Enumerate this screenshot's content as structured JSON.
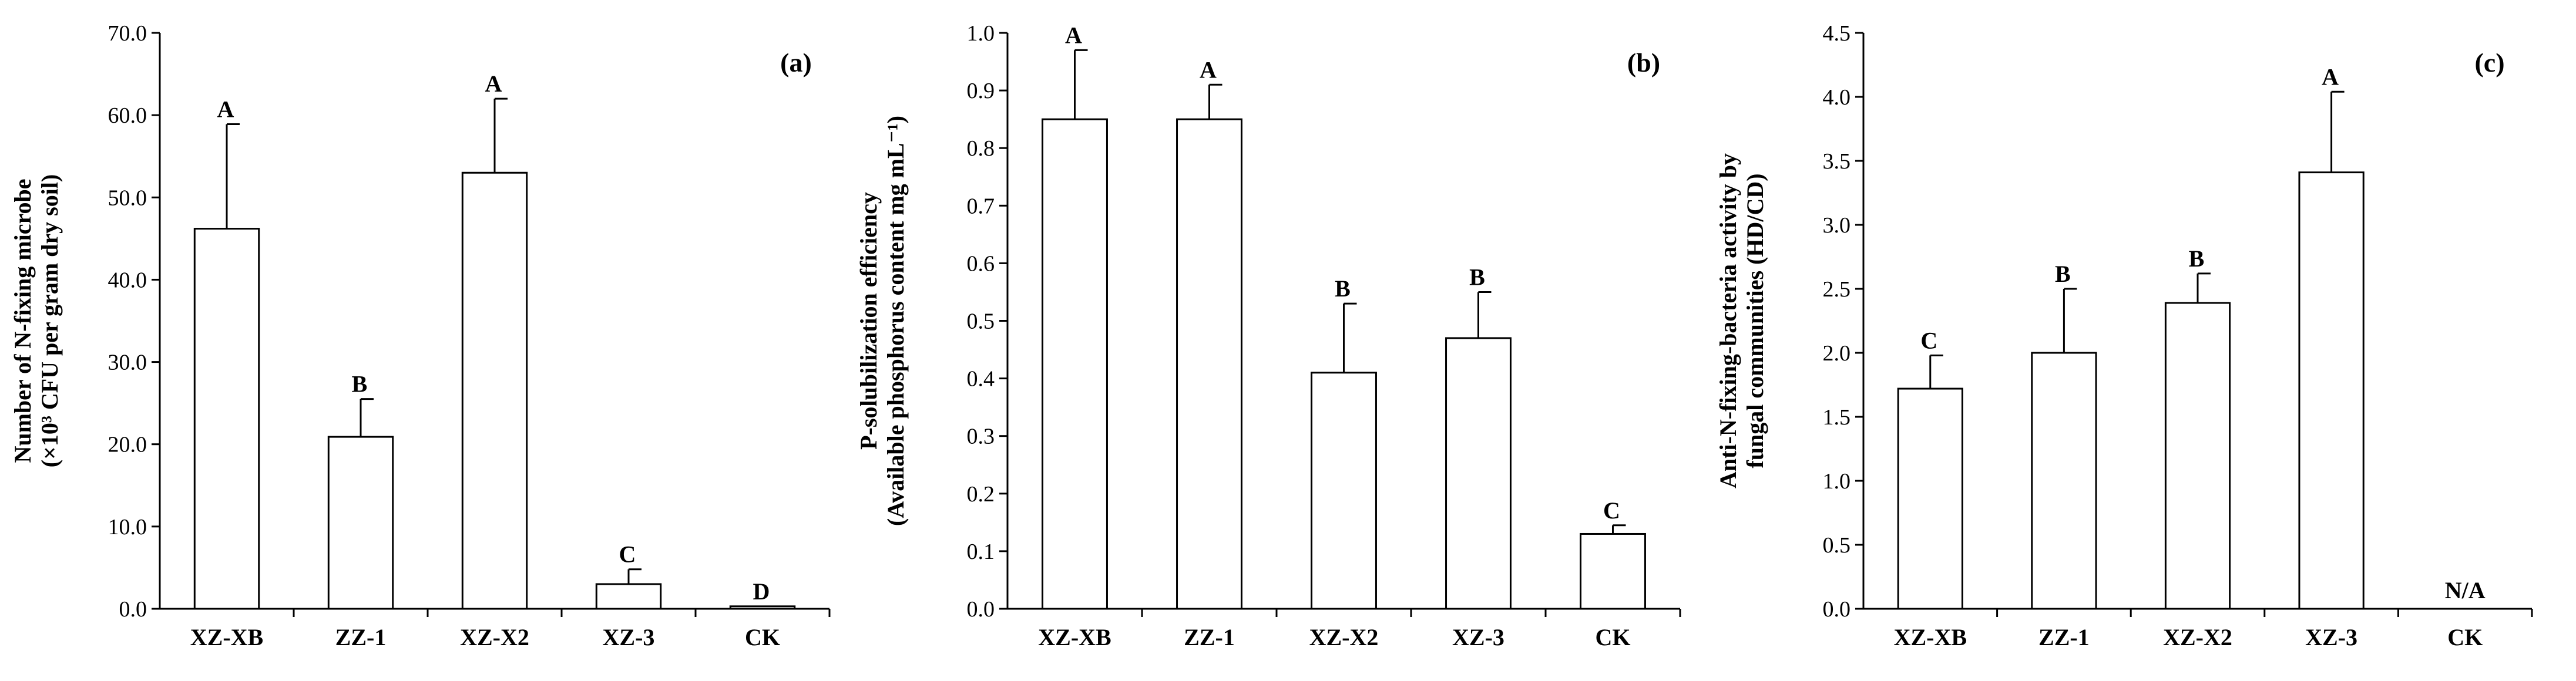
{
  "chart_data": [
    {
      "type": "bar",
      "panel_label": "(a)",
      "categories": [
        "XZ-XB",
        "ZZ-1",
        "XZ-X2",
        "XZ-3",
        "CK"
      ],
      "values": [
        46.2,
        20.9,
        53.0,
        3.0,
        0.3
      ],
      "errors": [
        12.7,
        4.6,
        9.0,
        1.8,
        0
      ],
      "significance": [
        "A",
        "B",
        "A",
        "C",
        "D"
      ],
      "ylabel_line1": "Number of N-fixing  microbe",
      "ylabel_line2": "(×10³ CFU per gram dry soil)",
      "ylim": [
        0,
        70
      ],
      "ytick_step": 10,
      "ytick_decimals": 1,
      "grid": false
    },
    {
      "type": "bar",
      "panel_label": "(b)",
      "categories": [
        "XZ-XB",
        "ZZ-1",
        "XZ-X2",
        "XZ-3",
        "CK"
      ],
      "values": [
        0.85,
        0.85,
        0.41,
        0.47,
        0.13
      ],
      "errors": [
        0.12,
        0.06,
        0.12,
        0.08,
        0.015
      ],
      "significance": [
        "A",
        "A",
        "B",
        "B",
        "C"
      ],
      "ylabel_line1": "P-solubilization  efficiency",
      "ylabel_line2": "(Available  phosphorus content mg mL⁻¹)",
      "ylim": [
        0,
        1.0
      ],
      "ytick_step": 0.1,
      "ytick_decimals": 1,
      "grid": false
    },
    {
      "type": "bar",
      "panel_label": "(c)",
      "categories": [
        "XZ-XB",
        "ZZ-1",
        "XZ-X2",
        "XZ-3",
        "CK"
      ],
      "values": [
        1.72,
        2.0,
        2.39,
        3.41,
        null
      ],
      "errors": [
        0.26,
        0.5,
        0.23,
        0.63,
        null
      ],
      "significance": [
        "C",
        "B",
        "B",
        "A",
        ""
      ],
      "na_label": "N/A",
      "ylabel_line1": "Anti-N-fixing-bacteria  activity by",
      "ylabel_line2": "fungal communities (HD/CD)",
      "ylim": [
        0,
        4.5
      ],
      "ytick_step": 0.5,
      "ytick_decimals": 1,
      "grid": false
    }
  ]
}
